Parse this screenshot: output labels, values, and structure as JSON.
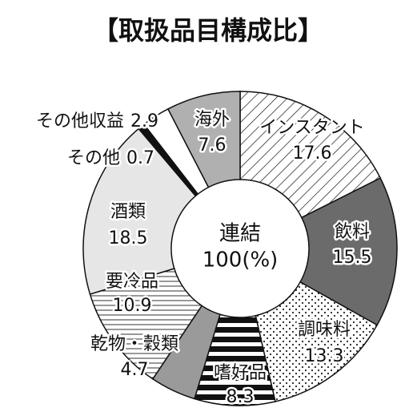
{
  "chart_data": {
    "type": "donut",
    "title": "【取扱品目構成比】",
    "center_label": [
      "連結",
      "100(%)"
    ],
    "categories": [
      "インスタント",
      "飲料",
      "調味料",
      "嗜好品",
      "乾物・穀類",
      "要冷品",
      "酒類",
      "その他",
      "その他収益",
      "海外"
    ],
    "values": [
      17.6,
      15.5,
      13.3,
      8.3,
      4.7,
      10.9,
      18.5,
      0.7,
      2.9,
      7.6
    ],
    "colors": [
      "url(#p-diag)",
      "#6b6b6b",
      "url(#p-dots)",
      "url(#p-thick)",
      "#9a9a9a",
      "url(#p-thin)",
      "#e6e6e6",
      "#111111",
      "#ffffff",
      "#b0b0b0"
    ]
  }
}
